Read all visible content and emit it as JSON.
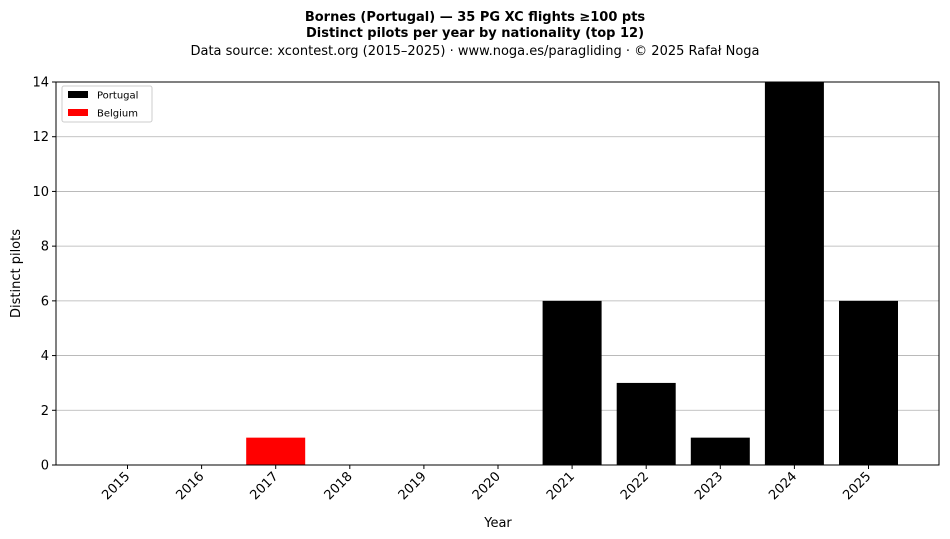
{
  "chart_data": {
    "type": "bar",
    "title": "Bornes (Portugal)  —  35 PG XC flights ≥100 pts",
    "subtitle": "Distinct pilots per year by nationality (top 12)",
    "source": "Data source: xcontest.org (2015–2025)  ·  www.noga.es/paragliding  ·  © 2025 Rafał Noga",
    "xlabel": "Year",
    "ylabel": "Distinct pilots",
    "categories": [
      "2015",
      "2016",
      "2017",
      "2018",
      "2019",
      "2020",
      "2021",
      "2022",
      "2023",
      "2024",
      "2025"
    ],
    "series": [
      {
        "name": "Portugal",
        "color": "#000000",
        "values": [
          0,
          0,
          0,
          0,
          0,
          0,
          6,
          3,
          1,
          14,
          6
        ]
      },
      {
        "name": "Belgium",
        "color": "#ff0000",
        "values": [
          0,
          0,
          1,
          0,
          0,
          0,
          0,
          0,
          0,
          0,
          0
        ]
      }
    ],
    "ylim": [
      0,
      14
    ],
    "yticks": [
      0,
      2,
      4,
      6,
      8,
      10,
      12,
      14
    ],
    "grid": "y",
    "legend": "top-left"
  }
}
